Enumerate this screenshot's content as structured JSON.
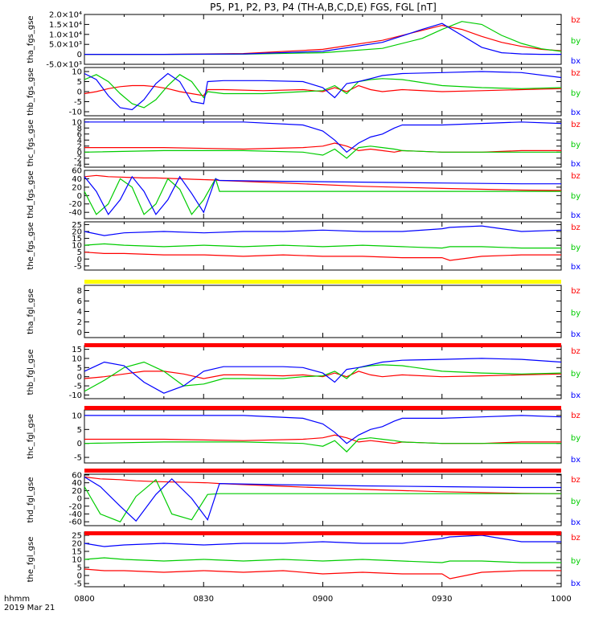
{
  "title": "P5, P1, P2, P3, P4 (TH-A,B,C,D,E) FGS, FGL [nT]",
  "footer": {
    "line1": "hhmm",
    "line2": "2019 Mar 21"
  },
  "colors": {
    "bz": "#ff0000",
    "by": "#00cc00",
    "bx": "#0000ff",
    "quality_red": "#ff0000",
    "quality_yellow": "#ffff00",
    "axis": "#000000"
  },
  "legend": [
    "bz",
    "by",
    "bx"
  ],
  "x_ticks": [
    "0800",
    "0830",
    "0900",
    "0930",
    "1000"
  ],
  "chart_data": [
    {
      "type": "line",
      "ylabel": "tha_fgs_gse",
      "xlim": [
        0,
        120
      ],
      "ylim": [
        -5000,
        20000
      ],
      "yticks": [
        "2.0×10⁴",
        "1.5×10⁴",
        "1.0×10⁴",
        "5.0×10³",
        "0",
        "-5.0×10³"
      ],
      "ytick_values": [
        20000,
        15000,
        10000,
        5000,
        0,
        -5000
      ],
      "x": [
        0,
        20,
        40,
        60,
        75,
        85,
        90,
        95,
        100,
        105,
        110,
        115,
        120
      ],
      "series": [
        {
          "name": "bz",
          "values": [
            0,
            0,
            400,
            2500,
            7000,
            12000,
            14500,
            12500,
            9000,
            6000,
            4000,
            2500,
            1800
          ]
        },
        {
          "name": "by",
          "values": [
            0,
            0,
            100,
            800,
            3000,
            8000,
            12500,
            16500,
            15000,
            9500,
            5500,
            2800,
            1500
          ]
        },
        {
          "name": "bx",
          "values": [
            0,
            0,
            200,
            1500,
            6000,
            12500,
            15500,
            9500,
            3500,
            800,
            200,
            0,
            0
          ]
        }
      ]
    },
    {
      "type": "line",
      "ylabel": "thb_fgs_gse",
      "xlim": [
        0,
        120
      ],
      "ylim": [
        -12,
        12
      ],
      "yticks": [
        "10",
        "5",
        "0",
        "-5",
        "-10"
      ],
      "ytick_values": [
        10,
        5,
        0,
        -5,
        -10
      ],
      "x": [
        0,
        3,
        6,
        9,
        12,
        15,
        18,
        21,
        24,
        27,
        30,
        31,
        35,
        45,
        55,
        60,
        63,
        66,
        69,
        72,
        75,
        80,
        90,
        100,
        110,
        120
      ],
      "series": [
        {
          "name": "bz",
          "values": [
            -1,
            0,
            1.5,
            2.5,
            3,
            3,
            2.5,
            1.5,
            0,
            -1,
            -2,
            1,
            1,
            0.5,
            1,
            0,
            2,
            0,
            3,
            1,
            0,
            1,
            0,
            0.5,
            1,
            1.5
          ]
        },
        {
          "name": "by",
          "values": [
            6,
            8.5,
            5,
            -1,
            -6,
            -8,
            -4,
            3,
            8.5,
            5,
            -3,
            0,
            -1,
            -1,
            0,
            0.5,
            3,
            -1,
            5,
            6,
            6.5,
            6,
            3,
            2,
            1.5,
            2
          ]
        },
        {
          "name": "bx",
          "values": [
            9,
            6,
            -2,
            -8,
            -9,
            -4,
            4,
            9,
            5,
            -5,
            -6,
            5,
            5.5,
            5.5,
            5,
            2,
            -3,
            4,
            5,
            6.5,
            8,
            9,
            9.5,
            10,
            9.5,
            7
          ]
        }
      ]
    },
    {
      "type": "line",
      "ylabel": "thc_fgs_gse",
      "xlim": [
        0,
        120
      ],
      "ylim": [
        -5,
        11
      ],
      "yticks": [
        "10",
        "8",
        "6",
        "4",
        "2",
        "0",
        "-2",
        "-4"
      ],
      "ytick_values": [
        10,
        8,
        6,
        4,
        2,
        0,
        -2,
        -4
      ],
      "x": [
        0,
        20,
        40,
        55,
        60,
        63,
        66,
        69,
        72,
        75,
        78,
        80,
        90,
        100,
        110,
        120
      ],
      "series": [
        {
          "name": "bz",
          "values": [
            1.5,
            1.5,
            1,
            1.5,
            2,
            3,
            2,
            0.5,
            1,
            0.5,
            0,
            0.5,
            0,
            0,
            0.5,
            0.5
          ]
        },
        {
          "name": "by",
          "values": [
            0,
            0.5,
            0.5,
            0,
            -1,
            1,
            -2,
            1.5,
            2,
            1.5,
            1,
            0.5,
            0,
            0,
            0,
            0
          ]
        },
        {
          "name": "bx",
          "values": [
            10,
            10,
            10,
            9,
            7,
            4,
            0,
            3,
            5,
            6,
            8,
            9,
            9,
            9.5,
            10,
            9.5
          ]
        }
      ]
    },
    {
      "type": "line",
      "ylabel": "thd_fgs_gse",
      "xlim": [
        0,
        120
      ],
      "ylim": [
        -55,
        60
      ],
      "yticks": [
        "60",
        "40",
        "20",
        "0",
        "-20",
        "-40"
      ],
      "ytick_values": [
        60,
        40,
        20,
        0,
        -20,
        -40
      ],
      "x": [
        0,
        3,
        6,
        9,
        12,
        15,
        18,
        21,
        24,
        27,
        30,
        33,
        34,
        50,
        70,
        90,
        110,
        120
      ],
      "series": [
        {
          "name": "bz",
          "values": [
            45,
            48,
            45,
            44,
            43,
            42,
            42,
            41,
            40,
            39,
            38,
            37,
            36,
            30,
            22,
            17,
            13,
            12
          ]
        },
        {
          "name": "by",
          "values": [
            10,
            -45,
            -20,
            40,
            20,
            -45,
            -20,
            40,
            15,
            -45,
            -10,
            40,
            10,
            10,
            10,
            10,
            10,
            10
          ]
        },
        {
          "name": "bx",
          "values": [
            45,
            10,
            -45,
            -10,
            45,
            10,
            -45,
            -10,
            45,
            5,
            -40,
            40,
            36,
            34,
            32,
            30,
            28,
            28
          ]
        }
      ]
    },
    {
      "type": "line",
      "ylabel": "the_fgs_gse",
      "xlim": [
        0,
        120
      ],
      "ylim": [
        -8,
        27
      ],
      "yticks": [
        "25",
        "20",
        "15",
        "10",
        "5",
        "0",
        "-5"
      ],
      "ytick_values": [
        25,
        20,
        15,
        10,
        5,
        0,
        -5
      ],
      "x": [
        0,
        5,
        10,
        20,
        30,
        40,
        50,
        60,
        70,
        80,
        90,
        92,
        100,
        110,
        120
      ],
      "series": [
        {
          "name": "bz",
          "values": [
            5,
            4,
            4,
            3,
            3,
            2,
            3,
            2,
            2,
            1,
            1,
            -1,
            2,
            3,
            3
          ]
        },
        {
          "name": "by",
          "values": [
            10,
            11,
            10,
            9,
            10,
            9,
            10,
            9,
            10,
            9,
            8,
            9,
            9,
            8,
            8
          ]
        },
        {
          "name": "bx",
          "values": [
            20,
            17,
            19,
            20,
            19,
            20,
            20,
            21,
            20,
            20,
            22,
            23,
            24,
            20,
            21
          ]
        }
      ]
    },
    {
      "type": "line",
      "ylabel": "tha_fgl_gse",
      "xlim": [
        0,
        120
      ],
      "ylim": [
        -1,
        9
      ],
      "yticks": [
        "8",
        "6",
        "4",
        "2",
        "0"
      ],
      "ytick_values": [
        8,
        6,
        4,
        2,
        0
      ],
      "x": [],
      "series": []
    },
    {
      "type": "line",
      "ylabel": "thb_fgl_gse",
      "xlim": [
        0,
        120
      ],
      "ylim": [
        -12,
        17
      ],
      "yticks": [
        "15",
        "10",
        "5",
        "0",
        "-5",
        "-10"
      ],
      "ytick_values": [
        15,
        10,
        5,
        0,
        -5,
        -10
      ],
      "x": [
        0,
        5,
        10,
        15,
        20,
        25,
        30,
        35,
        40,
        50,
        55,
        60,
        63,
        66,
        69,
        72,
        75,
        80,
        90,
        100,
        110,
        120
      ],
      "series": [
        {
          "name": "bz",
          "values": [
            -1,
            0,
            1.5,
            3,
            3,
            1.5,
            -1,
            1,
            1,
            0.5,
            1,
            0,
            2,
            0,
            3,
            1,
            0,
            1,
            0,
            0.5,
            1,
            1.5
          ]
        },
        {
          "name": "by",
          "values": [
            -8,
            -2,
            5,
            8,
            3,
            -5,
            -4,
            -1,
            -1,
            -1,
            0,
            0.5,
            3,
            -1,
            5,
            6,
            6.5,
            6,
            3,
            2,
            1.5,
            2
          ]
        },
        {
          "name": "bx",
          "values": [
            3,
            8,
            6,
            -3,
            -9,
            -5,
            3,
            5.5,
            5.5,
            5.5,
            5,
            2,
            -3,
            4,
            5,
            6.5,
            8,
            9,
            9.5,
            10,
            9.5,
            8
          ]
        }
      ]
    },
    {
      "type": "line",
      "ylabel": "thc_fgl_gse",
      "xlim": [
        0,
        120
      ],
      "ylim": [
        -7,
        12
      ],
      "yticks": [
        "10",
        "5",
        "0",
        "-5"
      ],
      "ytick_values": [
        10,
        5,
        0,
        -5
      ],
      "x": [
        0,
        20,
        40,
        55,
        60,
        63,
        66,
        69,
        72,
        75,
        78,
        80,
        90,
        100,
        110,
        120
      ],
      "series": [
        {
          "name": "bz",
          "values": [
            1.5,
            1.5,
            1,
            1.5,
            2,
            3,
            2,
            0.5,
            1,
            0.5,
            0,
            0.5,
            0,
            0,
            0.5,
            0.5
          ]
        },
        {
          "name": "by",
          "values": [
            0,
            0.5,
            0.5,
            0,
            -1,
            1,
            -3,
            1.5,
            2,
            1.5,
            1,
            0.5,
            0,
            0,
            0,
            0
          ]
        },
        {
          "name": "bx",
          "values": [
            10,
            10,
            10,
            9,
            7,
            4,
            0,
            3,
            5,
            6,
            8,
            9,
            9,
            9.5,
            10,
            9.5
          ]
        }
      ]
    },
    {
      "type": "line",
      "ylabel": "thd_fgl_gse",
      "xlim": [
        0,
        120
      ],
      "ylim": [
        -70,
        62
      ],
      "yticks": [
        "60",
        "40",
        "20",
        "0",
        "-20",
        "-40",
        "-60"
      ],
      "ytick_values": [
        60,
        40,
        20,
        0,
        -20,
        -40,
        -60
      ],
      "x": [
        0,
        4,
        9,
        13,
        18,
        22,
        27,
        31,
        34,
        50,
        70,
        90,
        110,
        120
      ],
      "series": [
        {
          "name": "bz",
          "values": [
            55,
            50,
            48,
            45,
            43,
            42,
            41,
            40,
            38,
            31,
            23,
            17,
            13,
            12
          ]
        },
        {
          "name": "by",
          "values": [
            30,
            -40,
            -60,
            5,
            48,
            -40,
            -55,
            10,
            12,
            12,
            12,
            12,
            12,
            12
          ]
        },
        {
          "name": "bx",
          "values": [
            55,
            30,
            -20,
            -58,
            10,
            50,
            0,
            -55,
            38,
            35,
            32,
            30,
            28,
            28
          ]
        }
      ]
    },
    {
      "type": "line",
      "ylabel": "the_fgl_gse",
      "xlim": [
        0,
        120
      ],
      "ylim": [
        -7,
        27
      ],
      "yticks": [
        "25",
        "20",
        "15",
        "10",
        "5",
        "0",
        "-5"
      ],
      "ytick_values": [
        25,
        20,
        15,
        10,
        5,
        0,
        -5
      ],
      "x": [
        0,
        5,
        10,
        20,
        30,
        40,
        50,
        60,
        70,
        80,
        90,
        92,
        100,
        110,
        120
      ],
      "series": [
        {
          "name": "bz",
          "values": [
            4,
            3,
            3,
            2,
            3,
            2,
            3,
            1,
            2,
            1,
            1,
            -2,
            2,
            3,
            3
          ]
        },
        {
          "name": "by",
          "values": [
            10,
            11,
            10,
            9,
            10,
            9,
            10,
            9,
            10,
            9,
            8,
            9,
            9,
            8,
            8
          ]
        },
        {
          "name": "bx",
          "values": [
            20,
            18,
            19,
            20,
            19,
            20,
            20,
            21,
            20,
            20,
            23,
            24,
            25,
            21,
            21
          ]
        }
      ]
    }
  ],
  "quality_bars": [
    {
      "color": "quality_yellow",
      "after_panel": 4
    },
    {
      "color": "quality_red",
      "after_panel": 5
    },
    {
      "color": "quality_red",
      "after_panel": 6
    },
    {
      "color": "quality_red",
      "after_panel": 7
    },
    {
      "color": "quality_red",
      "after_panel": 8
    }
  ]
}
